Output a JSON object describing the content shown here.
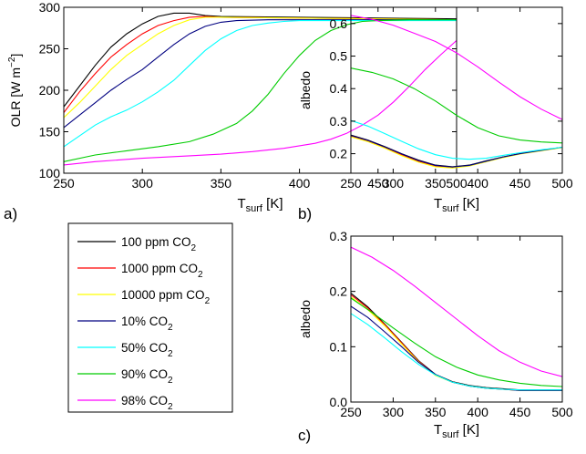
{
  "panels": {
    "a": {
      "tag": "a)"
    },
    "b": {
      "tag": "b)"
    },
    "c": {
      "tag": "c)"
    }
  },
  "chart_data": [
    {
      "id": "a",
      "type": "line",
      "xlabel_main": "T",
      "xlabel_sub": "surf",
      "xlabel_unit": " [K]",
      "ylabel": "OLR [W m−2]",
      "xlim": [
        250,
        500
      ],
      "ylim": [
        100,
        300
      ],
      "xticks": [
        250,
        300,
        350,
        400,
        450,
        500
      ],
      "yticks": [
        100,
        150,
        200,
        250,
        300
      ],
      "grid": false,
      "series": [
        {
          "key": "s1",
          "x": [
            250,
            260,
            270,
            280,
            290,
            300,
            310,
            320,
            330,
            340,
            350,
            400,
            450,
            500
          ],
          "y": [
            180,
            205,
            230,
            252,
            268,
            280,
            289,
            293,
            293,
            290,
            289,
            288,
            287,
            286
          ]
        },
        {
          "key": "s2",
          "x": [
            250,
            260,
            270,
            280,
            290,
            300,
            310,
            320,
            330,
            340,
            350,
            400,
            450,
            500
          ],
          "y": [
            173,
            198,
            220,
            240,
            255,
            268,
            278,
            284,
            288,
            289,
            288,
            287,
            286,
            285
          ]
        },
        {
          "key": "s3",
          "x": [
            250,
            260,
            270,
            280,
            290,
            300,
            310,
            320,
            330,
            340,
            350,
            400,
            450,
            500
          ],
          "y": [
            167,
            185,
            205,
            225,
            242,
            255,
            268,
            278,
            285,
            288,
            288,
            287,
            286,
            285
          ]
        },
        {
          "key": "s4",
          "x": [
            250,
            260,
            270,
            280,
            290,
            300,
            310,
            320,
            330,
            340,
            350,
            360,
            380,
            400,
            450,
            500
          ],
          "y": [
            155,
            170,
            185,
            200,
            213,
            225,
            240,
            255,
            268,
            277,
            282,
            284,
            285,
            285,
            285,
            285
          ]
        },
        {
          "key": "s5",
          "x": [
            250,
            260,
            270,
            280,
            290,
            300,
            310,
            320,
            330,
            340,
            350,
            360,
            370,
            380,
            390,
            400,
            450,
            500
          ],
          "y": [
            132,
            145,
            158,
            168,
            176,
            186,
            198,
            212,
            230,
            248,
            262,
            272,
            278,
            281,
            283,
            284,
            284,
            284
          ]
        },
        {
          "key": "s6",
          "x": [
            250,
            270,
            290,
            310,
            330,
            345,
            360,
            370,
            380,
            390,
            400,
            410,
            420,
            430,
            440,
            450,
            470,
            500
          ],
          "y": [
            114,
            122,
            127,
            132,
            138,
            147,
            160,
            175,
            195,
            220,
            242,
            260,
            272,
            279,
            283,
            284,
            285,
            285
          ]
        },
        {
          "key": "s7",
          "x": [
            250,
            270,
            300,
            330,
            350,
            370,
            390,
            410,
            420,
            430,
            440,
            450,
            460,
            470,
            480,
            490,
            500
          ],
          "y": [
            110,
            114,
            118,
            121,
            123,
            126,
            130,
            136,
            141,
            148,
            158,
            170,
            186,
            205,
            225,
            243,
            260
          ]
        }
      ]
    },
    {
      "id": "b",
      "type": "line",
      "xlabel_main": "T",
      "xlabel_sub": "surf",
      "xlabel_unit": " [K]",
      "ylabel": "albedo",
      "xlim": [
        250,
        500
      ],
      "ylim": [
        0.14,
        0.65
      ],
      "xticks": [
        250,
        300,
        350,
        400,
        450,
        500
      ],
      "yticks": [
        0.2,
        0.3,
        0.4,
        0.5,
        0.6
      ],
      "grid": false,
      "series": [
        {
          "key": "s1",
          "x": [
            250,
            270,
            290,
            310,
            330,
            350,
            370,
            390,
            410,
            430,
            450,
            475,
            500
          ],
          "y": [
            0.257,
            0.242,
            0.222,
            0.2,
            0.18,
            0.165,
            0.16,
            0.165,
            0.178,
            0.19,
            0.2,
            0.21,
            0.22
          ]
        },
        {
          "key": "s2",
          "x": [
            250,
            270,
            290,
            310,
            330,
            350,
            370,
            390,
            410,
            430,
            450,
            475,
            500
          ],
          "y": [
            0.255,
            0.24,
            0.22,
            0.197,
            0.177,
            0.162,
            0.157,
            0.163,
            0.176,
            0.189,
            0.2,
            0.21,
            0.22
          ]
        },
        {
          "key": "s3",
          "x": [
            250,
            270,
            290,
            310,
            330,
            350,
            370,
            390,
            410,
            430,
            450,
            475,
            500
          ],
          "y": [
            0.252,
            0.237,
            0.217,
            0.194,
            0.174,
            0.16,
            0.156,
            0.162,
            0.175,
            0.188,
            0.199,
            0.209,
            0.219
          ]
        },
        {
          "key": "s4",
          "x": [
            250,
            270,
            290,
            310,
            330,
            350,
            370,
            390,
            410,
            430,
            450,
            475,
            500
          ],
          "y": [
            0.256,
            0.241,
            0.221,
            0.199,
            0.179,
            0.164,
            0.159,
            0.164,
            0.177,
            0.19,
            0.2,
            0.21,
            0.22
          ]
        },
        {
          "key": "s5",
          "x": [
            250,
            270,
            290,
            310,
            330,
            350,
            370,
            390,
            410,
            430,
            450,
            475,
            500
          ],
          "y": [
            0.302,
            0.285,
            0.262,
            0.238,
            0.215,
            0.197,
            0.186,
            0.183,
            0.186,
            0.195,
            0.203,
            0.212,
            0.22
          ]
        },
        {
          "key": "s6",
          "x": [
            250,
            275,
            300,
            325,
            350,
            375,
            400,
            425,
            450,
            475,
            500
          ],
          "y": [
            0.463,
            0.45,
            0.43,
            0.4,
            0.362,
            0.318,
            0.28,
            0.255,
            0.242,
            0.236,
            0.233
          ]
        },
        {
          "key": "s7",
          "x": [
            250,
            275,
            300,
            325,
            350,
            375,
            400,
            425,
            450,
            475,
            500
          ],
          "y": [
            0.625,
            0.613,
            0.595,
            0.57,
            0.545,
            0.51,
            0.467,
            0.42,
            0.375,
            0.337,
            0.305
          ]
        }
      ]
    },
    {
      "id": "c",
      "type": "line",
      "xlabel_main": "T",
      "xlabel_sub": "surf",
      "xlabel_unit": " [K]",
      "ylabel": "albedo",
      "xlim": [
        250,
        500
      ],
      "ylim": [
        0,
        0.3
      ],
      "xticks": [
        250,
        300,
        350,
        400,
        450,
        500
      ],
      "yticks": [
        0,
        0.1,
        0.2,
        0.3
      ],
      "grid": false,
      "series": [
        {
          "key": "s1",
          "x": [
            250,
            270,
            290,
            310,
            330,
            350,
            370,
            390,
            410,
            430,
            450,
            475,
            500
          ],
          "y": [
            0.197,
            0.172,
            0.141,
            0.108,
            0.075,
            0.05,
            0.037,
            0.03,
            0.026,
            0.024,
            0.022,
            0.022,
            0.022
          ]
        },
        {
          "key": "s2",
          "x": [
            250,
            270,
            290,
            310,
            330,
            350,
            370,
            390,
            410,
            430,
            450,
            475,
            500
          ],
          "y": [
            0.194,
            0.17,
            0.14,
            0.107,
            0.074,
            0.049,
            0.036,
            0.029,
            0.025,
            0.023,
            0.021,
            0.021,
            0.021
          ]
        },
        {
          "key": "s3",
          "x": [
            250,
            270,
            290,
            310,
            330,
            350,
            370,
            390,
            410,
            430,
            450,
            475,
            500
          ],
          "y": [
            0.19,
            0.167,
            0.138,
            0.105,
            0.073,
            0.048,
            0.036,
            0.029,
            0.025,
            0.023,
            0.021,
            0.021,
            0.021
          ]
        },
        {
          "key": "s4",
          "x": [
            250,
            270,
            290,
            310,
            330,
            350,
            370,
            390,
            410,
            430,
            450,
            475,
            500
          ],
          "y": [
            0.173,
            0.153,
            0.127,
            0.1,
            0.072,
            0.05,
            0.036,
            0.029,
            0.025,
            0.023,
            0.021,
            0.021,
            0.021
          ]
        },
        {
          "key": "s5",
          "x": [
            250,
            270,
            290,
            310,
            330,
            350,
            370,
            390,
            410,
            430,
            450,
            475,
            500
          ],
          "y": [
            0.16,
            0.14,
            0.116,
            0.091,
            0.068,
            0.049,
            0.036,
            0.029,
            0.025,
            0.023,
            0.022,
            0.022,
            0.022
          ]
        },
        {
          "key": "s6",
          "x": [
            250,
            275,
            300,
            325,
            350,
            375,
            400,
            425,
            450,
            475,
            500
          ],
          "y": [
            0.188,
            0.162,
            0.134,
            0.107,
            0.082,
            0.063,
            0.049,
            0.04,
            0.034,
            0.03,
            0.028
          ]
        },
        {
          "key": "s7",
          "x": [
            250,
            275,
            300,
            325,
            350,
            375,
            400,
            425,
            450,
            475,
            500
          ],
          "y": [
            0.28,
            0.262,
            0.238,
            0.21,
            0.18,
            0.15,
            0.12,
            0.093,
            0.072,
            0.056,
            0.046
          ]
        }
      ]
    }
  ],
  "legend": {
    "placement": "left, between panels",
    "items": [
      {
        "key": "s1",
        "text": "100 ppm CO",
        "sub": "2",
        "color": "#000000"
      },
      {
        "key": "s2",
        "text": "1000 ppm CO",
        "sub": "2",
        "color": "#ff0000"
      },
      {
        "key": "s3",
        "text": "10000 ppm CO",
        "sub": "2",
        "color": "#ffff00"
      },
      {
        "key": "s4",
        "text": "10% CO",
        "sub": "2",
        "color": "#000080"
      },
      {
        "key": "s5",
        "text": "50% CO",
        "sub": "2",
        "color": "#00ffff"
      },
      {
        "key": "s6",
        "text": "90% CO",
        "sub": "2",
        "color": "#00cc00"
      },
      {
        "key": "s7",
        "text": "98% CO",
        "sub": "2",
        "color": "#ff00ff"
      }
    ]
  }
}
